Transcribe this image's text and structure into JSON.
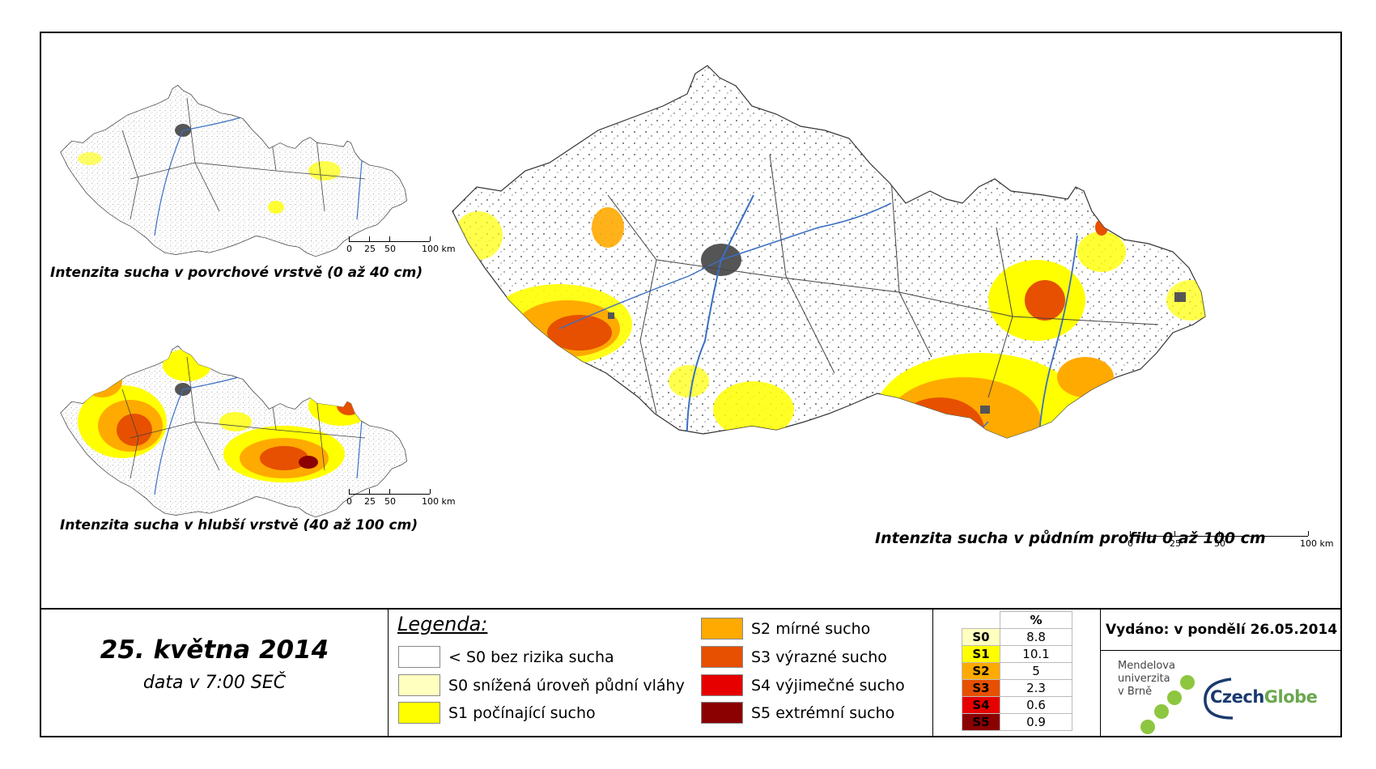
{
  "maps": {
    "top_left_title": "Intenzita sucha v povrchové vrstvě (0 až 40 cm)",
    "bottom_left_title": "Intenzita sucha v hlubší vrstvě (40 až 100 cm)",
    "main_title": "Intenzita sucha v půdním profilu 0 až 100 cm",
    "scale_labels": [
      "0",
      "25",
      "50",
      "100 km"
    ]
  },
  "footer": {
    "date": "25. května 2014",
    "time": "data v 7:00 SEČ",
    "legend_title": "Legenda:",
    "legend_items": [
      {
        "label": "< S0 bez rizika sucha",
        "color": "#ffffff"
      },
      {
        "label": "S0 snížená úroveň půdní vláhy",
        "color": "#ffffc0"
      },
      {
        "label": "S1 počínající sucho",
        "color": "#ffff00"
      },
      {
        "label": "S2 mírné sucho",
        "color": "#ffaa00"
      },
      {
        "label": "S3 výrazné sucho",
        "color": "#e65000"
      },
      {
        "label": "S4 výjimečné sucho",
        "color": "#e60000"
      },
      {
        "label": "S5 extrémní sucho",
        "color": "#8b0000"
      }
    ],
    "pct_header": "%",
    "pct_rows": [
      {
        "code": "S0",
        "value": "8.8",
        "color": "#ffffc0",
        "text_color": "#000000"
      },
      {
        "code": "S1",
        "value": "10.1",
        "color": "#ffff00",
        "text_color": "#000000"
      },
      {
        "code": "S2",
        "value": "5",
        "color": "#ffaa00",
        "text_color": "#000000"
      },
      {
        "code": "S3",
        "value": "2.3",
        "color": "#e65000",
        "text_color": "#000000"
      },
      {
        "code": "S4",
        "value": "0.6",
        "color": "#e60000",
        "text_color": "#000000"
      },
      {
        "code": "S5",
        "value": "0.9",
        "color": "#8b0000",
        "text_color": "#000000"
      }
    ],
    "issued": "Vydáno: v pondělí 26.05.2014",
    "mu_logo_lines": [
      "Mendelova",
      "univerzita",
      "v Brně"
    ],
    "cg_logo": {
      "czech": "Czech",
      "globe": "Globe"
    }
  },
  "colors": {
    "border": "#000000",
    "river": "#3a6fc4",
    "urban": "#555555",
    "district_line": "#444444",
    "cg_dark": "#1a3a6e",
    "cg_green": "#6aa84f"
  }
}
